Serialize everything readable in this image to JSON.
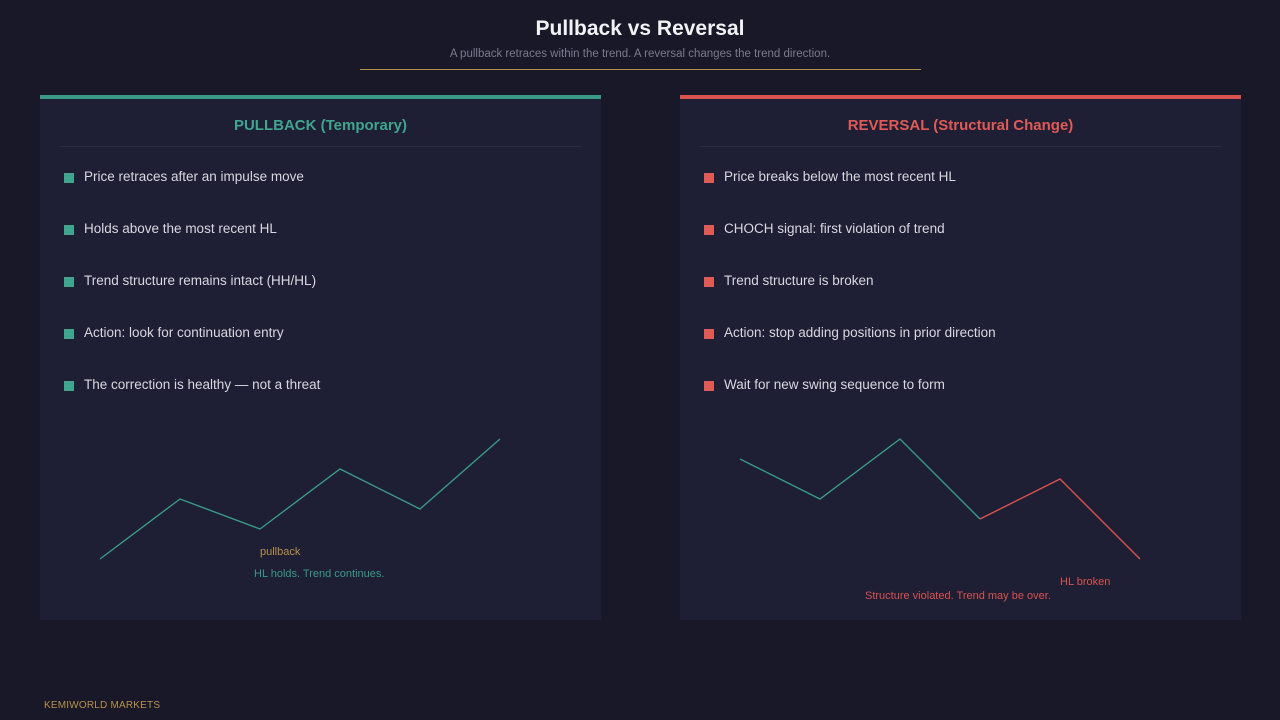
{
  "header": {
    "title": "Pullback vs Reversal",
    "subtitle": "A pullback retraces within the trend. A reversal changes the trend direction."
  },
  "colors": {
    "background": "#181828",
    "panel": "#1e1e34",
    "pullback_accent": "#3a9a86",
    "reversal_accent": "#d9534f",
    "gold": "#b8924a"
  },
  "pullback": {
    "heading": "PULLBACK (Temporary)",
    "bullets": [
      "Price retraces after an impulse move",
      "Holds above the most recent HL",
      "Trend structure remains intact (HH/HL)",
      "Action: look for continuation entry",
      "The correction is healthy — not a threat"
    ],
    "diagram": {
      "label_pullback": "pullback",
      "caption": "HL holds. Trend continues."
    }
  },
  "reversal": {
    "heading": "REVERSAL (Structural Change)",
    "bullets": [
      "Price breaks below the most recent HL",
      "CHOCH signal: first violation of trend",
      "Trend structure is broken",
      "Action: stop adding positions in prior direction",
      "Wait for new swing sequence to form"
    ],
    "diagram": {
      "label_broken": "HL broken",
      "caption": "Structure violated. Trend may be over."
    }
  },
  "footer": {
    "brand": "KEMIWORLD MARKETS"
  }
}
